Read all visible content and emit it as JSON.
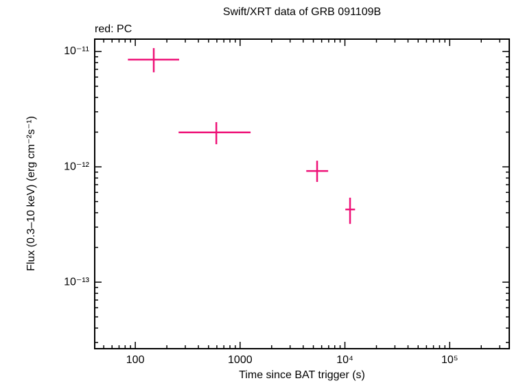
{
  "chart_data": {
    "type": "scatter",
    "title": "Swift/XRT data of GRB 091109B",
    "subtitle": "red: PC",
    "x_label": "Time since BAT trigger (s)",
    "y_label": "Flux (0.3–10 keV) (erg cm⁻²s⁻¹)",
    "xscale": "log",
    "yscale": "log",
    "xlim": [
      41,
      370000
    ],
    "ylim": [
      2.65e-14,
      1.28e-11
    ],
    "xticks": [
      100,
      1000,
      {
        "value": 10000,
        "label": "10⁴"
      },
      {
        "value": 100000,
        "label": "10⁵"
      }
    ],
    "yticks": [
      {
        "value": 1e-13,
        "label": "10⁻¹³"
      },
      {
        "value": 1e-12,
        "label": "10⁻¹²"
      },
      {
        "value": 1e-11,
        "label": "10⁻¹¹"
      }
    ],
    "series": [
      {
        "name": "PC",
        "color": "#ee1177",
        "x": [
          150,
          593,
          5430,
          11200
        ],
        "x_low": [
          85,
          259,
          4280,
          10100
        ],
        "x_high": [
          262,
          1259,
          6920,
          12500
        ],
        "values": [
          8.5e-12,
          1.99e-12,
          9.2e-13,
          4.27e-13
        ],
        "y_low": [
          6.6e-12,
          1.57e-12,
          7.4e-13,
          3.2e-13
        ],
        "y_high": [
          1.07e-11,
          2.44e-12,
          1.13e-12,
          5.4e-13
        ]
      }
    ]
  }
}
